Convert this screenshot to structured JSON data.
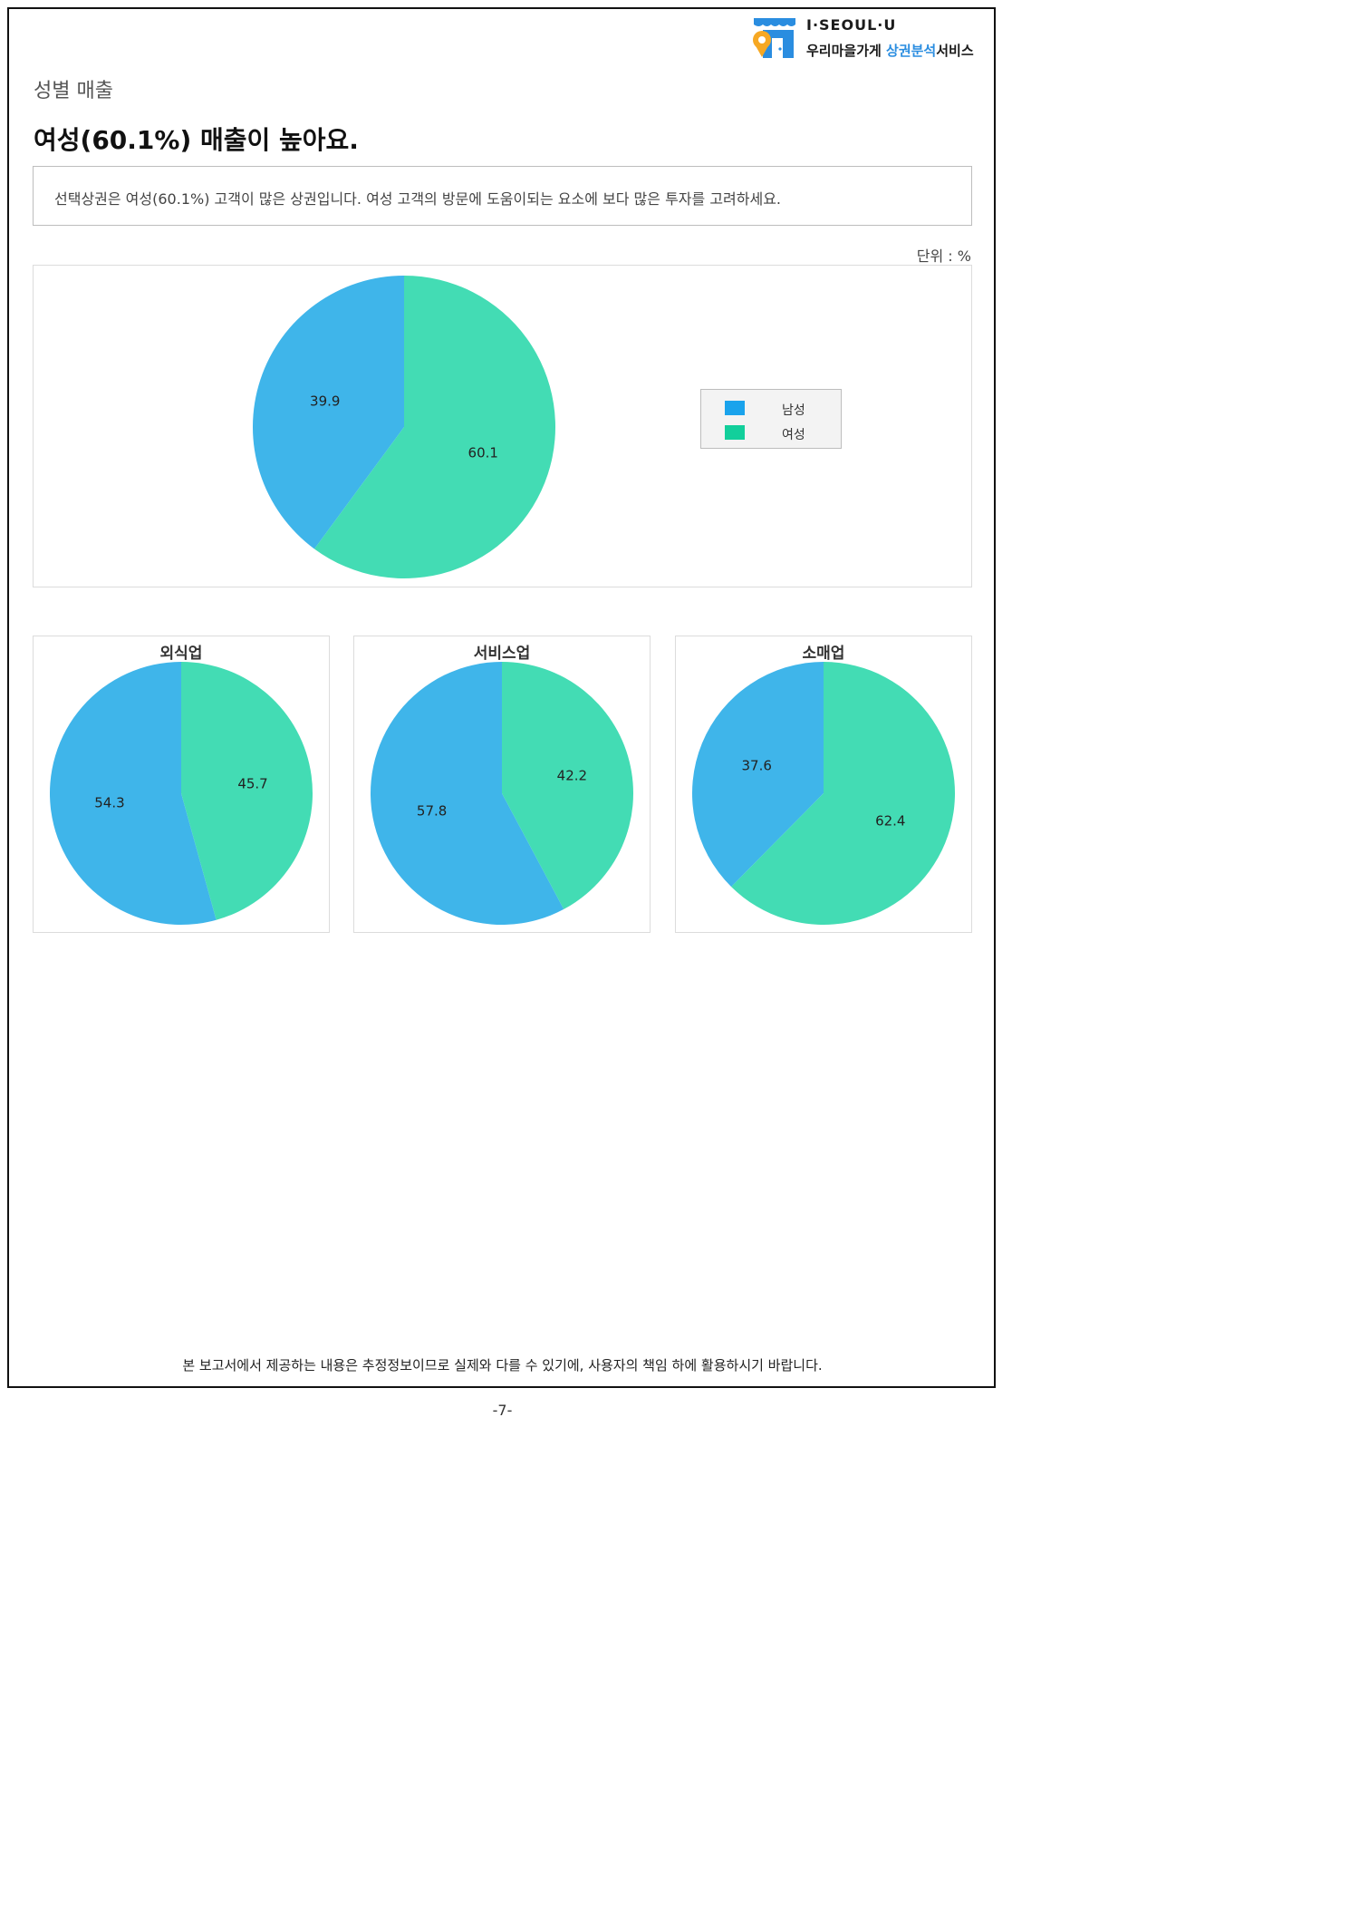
{
  "logo": {
    "line1": "I·SEOUL·U",
    "line2_prefix": "우리마을가게 ",
    "line2_highlight": "상권분석",
    "line2_suffix": "서비스"
  },
  "section_label": "성별 매출",
  "headline": "여성(60.1%) 매출이 높아요.",
  "description": "선택상권은 여성(60.1%) 고객이 많은 상권입니다. 여성 고객의 방문에 도움이되는 요소에 보다 많은 투자를 고려하세요.",
  "unit": "단위 : %",
  "colors": {
    "male": "#3fb5ea",
    "female": "#43dcb4",
    "legend_male": "#1aa3ec",
    "legend_female": "#12cf9b"
  },
  "legend": [
    {
      "label": "남성"
    },
    {
      "label": "여성"
    }
  ],
  "chart_data": [
    {
      "type": "pie",
      "title": "",
      "categories": [
        "남성",
        "여성"
      ],
      "values": [
        39.9,
        60.1
      ]
    },
    {
      "type": "pie",
      "title": "외식업",
      "categories": [
        "남성",
        "여성"
      ],
      "values": [
        54.3,
        45.7
      ]
    },
    {
      "type": "pie",
      "title": "서비스업",
      "categories": [
        "남성",
        "여성"
      ],
      "values": [
        57.8,
        42.2
      ]
    },
    {
      "type": "pie",
      "title": "소매업",
      "categories": [
        "남성",
        "여성"
      ],
      "values": [
        37.6,
        62.4
      ]
    }
  ],
  "footer_note": "본 보고서에서 제공하는 내용은 추정정보이므로 실제와 다를 수 있기에, 사용자의 책임 하에 활용하시기 바랍니다.",
  "page_number": "-7-"
}
